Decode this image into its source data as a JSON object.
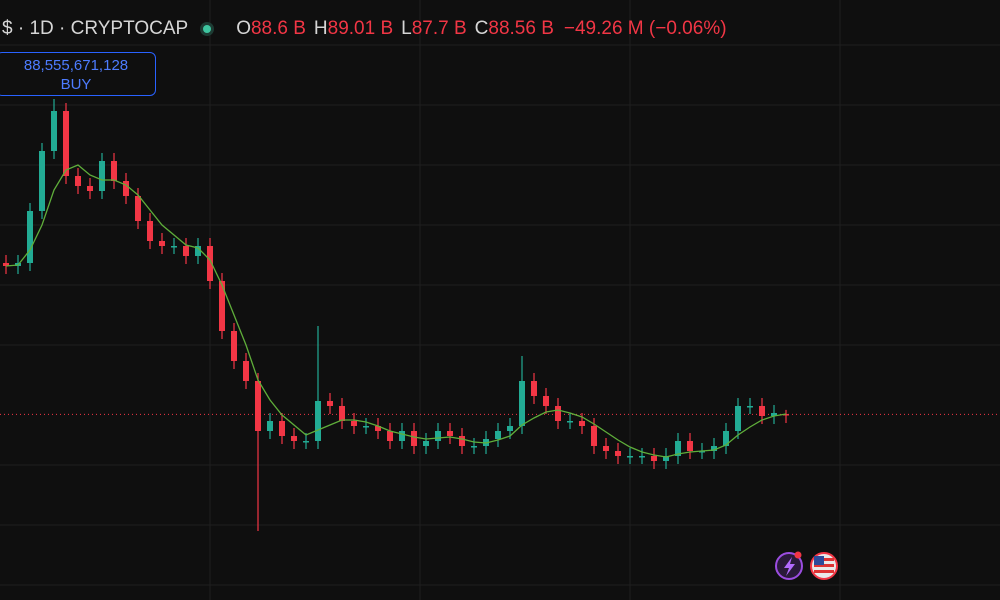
{
  "header": {
    "symbol": "$ · 1D · CRYPTOCAP",
    "ohlc": [
      {
        "key": "O",
        "value": "88.6 B"
      },
      {
        "key": "H",
        "value": "89.01 B"
      },
      {
        "key": "L",
        "value": "87.7 B"
      },
      {
        "key": "C",
        "value": "88.56 B"
      }
    ],
    "change": "−49.26 M (−0.06%)"
  },
  "price_tag": {
    "value": "88,555,671,128",
    "side": "BUY"
  },
  "chart_data": {
    "type": "candlestick",
    "ylim": [
      70,
      130
    ],
    "colors": {
      "up": "#22ab94",
      "down": "#f23645",
      "ma": "#5fae3a"
    },
    "open": [
      103.7,
      103.4,
      103.7,
      108.9,
      114.9,
      118.9,
      112.4,
      111.4,
      110.9,
      113.9,
      111.9,
      110.4,
      107.9,
      105.9,
      105.4,
      105.4,
      104.4,
      105.4,
      101.9,
      96.9,
      93.9,
      91.9,
      86.9,
      87.9,
      86.4,
      85.9,
      85.9,
      89.9,
      89.4,
      87.9,
      87.4,
      87.4,
      86.9,
      85.9,
      86.9,
      85.4,
      85.9,
      86.9,
      86.4,
      85.4,
      85.4,
      86.1,
      86.9,
      87.4,
      91.9,
      90.4,
      89.4,
      87.9,
      87.9,
      87.4,
      85.4,
      84.9,
      84.4,
      84.4,
      84.4,
      83.9,
      84.4,
      85.9,
      84.9,
      84.9,
      85.4,
      86.9,
      89.4,
      89.4,
      88.4,
      88.6
    ],
    "high": [
      104.5,
      104.5,
      109.7,
      115.7,
      120.1,
      119.7,
      113.2,
      112.2,
      114.7,
      114.7,
      112.7,
      111.2,
      108.7,
      106.7,
      106.2,
      106.2,
      106.2,
      106.2,
      102.7,
      97.7,
      94.7,
      92.7,
      88.7,
      88.7,
      87.2,
      86.7,
      97.4,
      90.7,
      90.2,
      88.7,
      88.2,
      88.2,
      87.7,
      87.7,
      87.7,
      86.7,
      87.7,
      87.7,
      87.2,
      86.2,
      86.9,
      87.7,
      88.2,
      94.4,
      92.7,
      91.2,
      90.2,
      88.7,
      88.7,
      88.2,
      86.2,
      85.7,
      85.2,
      85.2,
      85.2,
      85.2,
      86.7,
      86.7,
      85.7,
      86.2,
      87.7,
      90.2,
      90.2,
      90.2,
      89.5,
      89.01
    ],
    "low": [
      102.6,
      102.6,
      102.9,
      108.1,
      114.1,
      111.6,
      110.6,
      110.1,
      110.1,
      111.1,
      109.6,
      107.1,
      105.1,
      104.6,
      104.6,
      103.6,
      103.6,
      101.1,
      96.1,
      93.1,
      91.1,
      76.9,
      86.1,
      85.6,
      85.1,
      85.1,
      85.1,
      88.6,
      87.1,
      86.6,
      86.6,
      86.1,
      85.1,
      85.1,
      84.6,
      84.6,
      85.1,
      85.6,
      84.6,
      84.6,
      84.6,
      85.3,
      86.1,
      86.6,
      89.6,
      88.6,
      87.1,
      87.1,
      86.6,
      84.6,
      84.1,
      83.6,
      83.6,
      83.6,
      83.1,
      83.1,
      83.6,
      84.1,
      84.1,
      84.1,
      84.6,
      86.1,
      88.6,
      87.6,
      87.6,
      87.7
    ],
    "close": [
      103.4,
      103.7,
      108.9,
      114.9,
      118.9,
      112.4,
      111.4,
      110.9,
      113.9,
      111.9,
      110.4,
      107.9,
      105.9,
      105.4,
      105.4,
      104.4,
      105.4,
      101.9,
      96.9,
      93.9,
      91.9,
      86.9,
      87.9,
      86.4,
      85.9,
      85.9,
      89.9,
      89.4,
      87.9,
      87.4,
      87.4,
      86.9,
      85.9,
      86.9,
      85.4,
      85.9,
      86.9,
      86.4,
      85.4,
      85.4,
      86.1,
      86.9,
      87.4,
      91.9,
      90.4,
      89.4,
      87.9,
      87.9,
      87.4,
      85.4,
      84.9,
      84.4,
      84.4,
      84.4,
      83.9,
      84.4,
      85.9,
      84.9,
      84.9,
      85.4,
      86.9,
      89.4,
      89.4,
      88.4,
      88.7,
      88.56
    ],
    "ma": [
      103.4,
      103.5,
      105,
      107.5,
      111,
      113,
      113.5,
      112.5,
      112,
      112,
      111.5,
      110.5,
      109,
      107.5,
      106.5,
      105.5,
      105.2,
      104,
      101.5,
      98.5,
      95.5,
      92,
      90,
      88.5,
      87.5,
      86.5,
      87,
      87.5,
      88,
      88,
      87.8,
      87.4,
      86.9,
      86.6,
      86.3,
      86.1,
      86.2,
      86.3,
      86.1,
      85.8,
      85.7,
      86,
      86.4,
      87.5,
      88.2,
      88.8,
      89,
      88.7,
      88.3,
      87.6,
      86.8,
      86,
      85.3,
      84.8,
      84.5,
      84.3,
      84.6,
      84.8,
      84.9,
      85,
      85.5,
      86.5,
      87.3,
      88,
      88.4,
      88.6
    ]
  }
}
